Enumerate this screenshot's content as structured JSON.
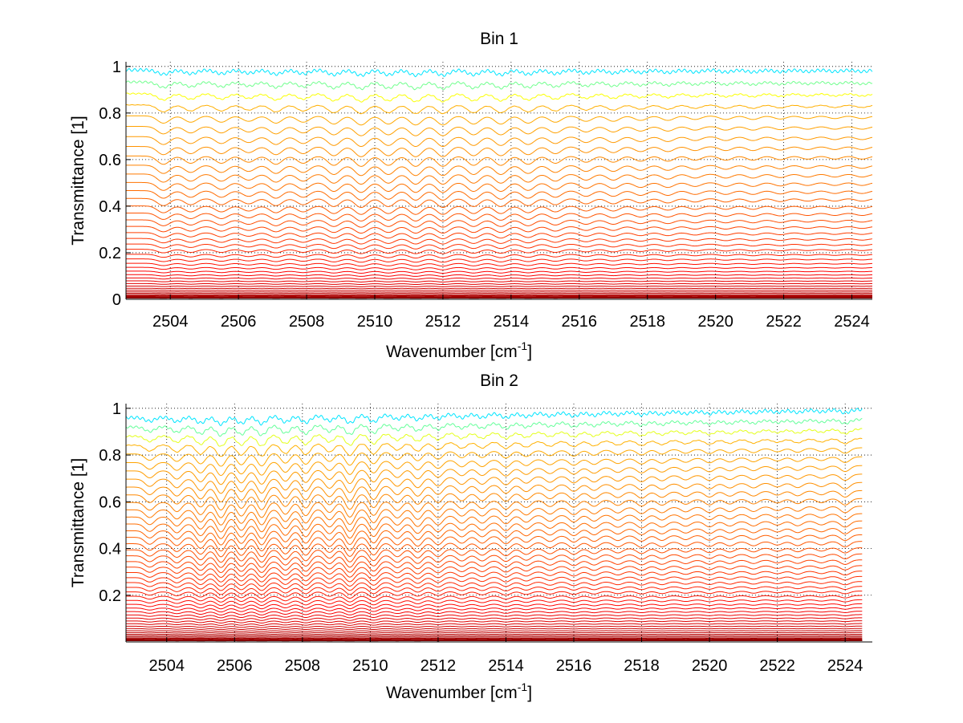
{
  "chart_data": [
    {
      "type": "line",
      "title": "Bin 1",
      "xlabel": "Wavenumber [cm",
      "xlabel_sup": "-1",
      "xlabel_end": "]",
      "ylabel": "Transmittance [1]",
      "xlim": [
        2502.7,
        2524.6
      ],
      "ylim": [
        0,
        1.02
      ],
      "xticks": [
        2504,
        2506,
        2508,
        2510,
        2512,
        2514,
        2516,
        2518,
        2520,
        2522,
        2524
      ],
      "yticks": [
        0,
        0.2,
        0.4,
        0.6,
        0.8,
        1
      ],
      "ytick_labels": [
        "0",
        "0.2",
        "0.4",
        "0.6",
        "0.8",
        "1"
      ],
      "grid": true,
      "legend": "none",
      "colormap": "jet (blue to red)",
      "series_count": 44,
      "top_level_start": 0.985,
      "bottom_level": 0.005,
      "level_exponent": 2.3,
      "tilt_top": 0.0,
      "tilt_bottom": 0.0,
      "rise_start": 0.0,
      "rise_end": 0.0,
      "x_end": 2524.6,
      "line_depth_scale": 0.06,
      "line_centers": [
        2503.8,
        2504.6,
        2505.5,
        2506.3,
        2507.1,
        2507.9,
        2508.8,
        2509.6,
        2510.4,
        2511.2,
        2512.0,
        2512.9,
        2513.7,
        2514.5,
        2515.3,
        2516.2,
        2517.0,
        2517.8,
        2518.6,
        2519.4,
        2520.3,
        2521.1,
        2521.9,
        2522.7,
        2523.5,
        2524.3
      ],
      "line_depths": [
        0.8,
        0.7,
        0.7,
        0.6,
        0.8,
        0.7,
        0.9,
        1.0,
        0.9,
        1.0,
        1.0,
        0.9,
        0.9,
        0.8,
        0.7,
        0.6,
        0.6,
        0.5,
        0.5,
        0.4,
        0.4,
        0.4,
        0.35,
        0.3,
        0.3,
        0.3
      ],
      "line_width": 0.18
    },
    {
      "type": "line",
      "title": "Bin 2",
      "xlabel": "Wavenumber [cm",
      "xlabel_sup": "-1",
      "xlabel_end": "]",
      "ylabel": "Transmittance [1]",
      "xlim": [
        2502.8,
        2524.8
      ],
      "ylim": [
        0,
        1.02
      ],
      "xticks": [
        2504,
        2506,
        2508,
        2510,
        2512,
        2514,
        2516,
        2518,
        2520,
        2522,
        2524
      ],
      "yticks": [
        0.2,
        0.4,
        0.6,
        0.8,
        1
      ],
      "ytick_labels": [
        "0.2",
        "0.4",
        "0.6",
        "0.8",
        "1"
      ],
      "grid": true,
      "legend": "none",
      "colormap": "jet (blue to red)",
      "series_count": 48,
      "top_level_start": 0.96,
      "bottom_level": 0.005,
      "level_exponent": 2.0,
      "tilt_top": 0.035,
      "tilt_bottom": 0.0,
      "rise_start": 0.0,
      "rise_end": 0.0,
      "x_end": 2524.5,
      "line_depth_scale": 0.09,
      "line_centers": [
        2503.5,
        2504.3,
        2505.0,
        2505.6,
        2506.2,
        2506.8,
        2507.5,
        2508.1,
        2508.8,
        2509.4,
        2510.1,
        2510.8,
        2511.4,
        2512.0,
        2512.7,
        2513.3,
        2514.0,
        2514.6,
        2515.3,
        2516.0,
        2516.6,
        2517.3,
        2518.0,
        2518.6,
        2519.3,
        2520.0,
        2520.6,
        2521.3,
        2522.0,
        2522.6,
        2523.3,
        2524.0
      ],
      "line_depths": [
        0.5,
        0.6,
        0.8,
        1.0,
        0.9,
        1.0,
        0.8,
        0.9,
        0.7,
        1.0,
        0.9,
        0.6,
        0.7,
        0.6,
        0.5,
        0.5,
        0.55,
        0.45,
        0.4,
        0.45,
        0.4,
        0.35,
        0.4,
        0.35,
        0.3,
        0.35,
        0.3,
        0.3,
        0.25,
        0.3,
        0.25,
        0.4
      ],
      "line_width": 0.14
    }
  ]
}
